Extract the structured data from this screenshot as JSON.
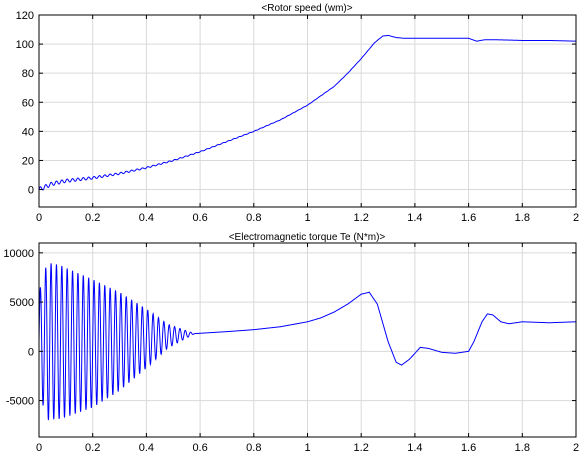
{
  "colors": {
    "background": "#ffffff",
    "series": "#0000ff",
    "grid": "#d9d9d9",
    "axes": "#000000"
  },
  "chart_data": [
    {
      "type": "line",
      "title": "<Rotor speed (wm)>",
      "xlabel": "",
      "ylabel": "",
      "xlim": [
        0,
        2
      ],
      "ylim": [
        -12,
        120
      ],
      "xticks": [
        0,
        0.2,
        0.4,
        0.6,
        0.8,
        1,
        1.2,
        1.4,
        1.6,
        1.8,
        2
      ],
      "xtick_labels": [
        "0",
        "0.2",
        "0.4",
        "0.6",
        "0.8",
        "1",
        "1.2",
        "1.4",
        "1.6",
        "1.8",
        "2"
      ],
      "yticks": [
        0,
        20,
        40,
        60,
        80,
        100,
        120
      ],
      "ytick_labels": [
        "0",
        "20",
        "40",
        "60",
        "80",
        "100",
        "120"
      ],
      "grid": true,
      "series": [
        {
          "color": "#0000ff",
          "oscillation": {
            "amplitude": 1.5,
            "frequency_hz": 50,
            "decay_time_s": 0.35
          },
          "x": [
            0,
            0.05,
            0.1,
            0.2,
            0.3,
            0.4,
            0.5,
            0.6,
            0.7,
            0.8,
            0.9,
            1.0,
            1.1,
            1.15,
            1.2,
            1.25,
            1.28,
            1.3,
            1.33,
            1.36,
            1.4,
            1.5,
            1.6,
            1.63,
            1.66,
            1.7,
            1.8,
            1.9,
            2.0
          ],
          "y": [
            0,
            4,
            6,
            8,
            11,
            15,
            20,
            26,
            33,
            40,
            48,
            58,
            71,
            80,
            90,
            101,
            105.5,
            106,
            104.5,
            104,
            104,
            104,
            104,
            102,
            103,
            103,
            102.5,
            102.5,
            102
          ]
        }
      ]
    },
    {
      "type": "line",
      "title": "<Electromagnetic torque Te (N*m)>",
      "xlabel": "",
      "ylabel": "",
      "xlim": [
        0,
        2
      ],
      "ylim": [
        -8700,
        11000
      ],
      "xticks": [
        0,
        0.2,
        0.4,
        0.6,
        0.8,
        1,
        1.2,
        1.4,
        1.6,
        1.8,
        2
      ],
      "xtick_labels": [
        "0",
        "0.2",
        "0.4",
        "0.6",
        "0.8",
        "1",
        "1.2",
        "1.4",
        "1.6",
        "1.8",
        "2"
      ],
      "yticks": [
        -5000,
        0,
        5000,
        10000
      ],
      "ytick_labels": [
        "-5000",
        "0",
        "5000",
        "10000"
      ],
      "grid": true,
      "series": [
        {
          "color": "#0000ff",
          "oscillation": {
            "frequency_hz": 50,
            "end_s": 0.58,
            "envelope_t": [
              0,
              0.03,
              0.08,
              0.2,
              0.3,
              0.4,
              0.48,
              0.58
            ],
            "envelope_a": [
              5000,
              8000,
              7800,
              6500,
              5000,
              3000,
              1200,
              0
            ]
          },
          "x": [
            0,
            0.05,
            0.1,
            0.2,
            0.3,
            0.4,
            0.5,
            0.58,
            0.7,
            0.8,
            0.9,
            1.0,
            1.05,
            1.1,
            1.15,
            1.2,
            1.23,
            1.26,
            1.3,
            1.33,
            1.35,
            1.38,
            1.42,
            1.45,
            1.5,
            1.55,
            1.6,
            1.62,
            1.65,
            1.67,
            1.69,
            1.72,
            1.75,
            1.8,
            1.9,
            2.0
          ],
          "y": [
            1000,
            1000,
            900,
            800,
            1000,
            1300,
            1600,
            1800,
            2000,
            2200,
            2500,
            3000,
            3400,
            4000,
            4800,
            5800,
            6000,
            4800,
            1000,
            -1100,
            -1400,
            -800,
            400,
            300,
            -100,
            -200,
            0,
            1000,
            3000,
            3800,
            3700,
            3000,
            2800,
            3000,
            2900,
            3000
          ]
        }
      ]
    }
  ]
}
